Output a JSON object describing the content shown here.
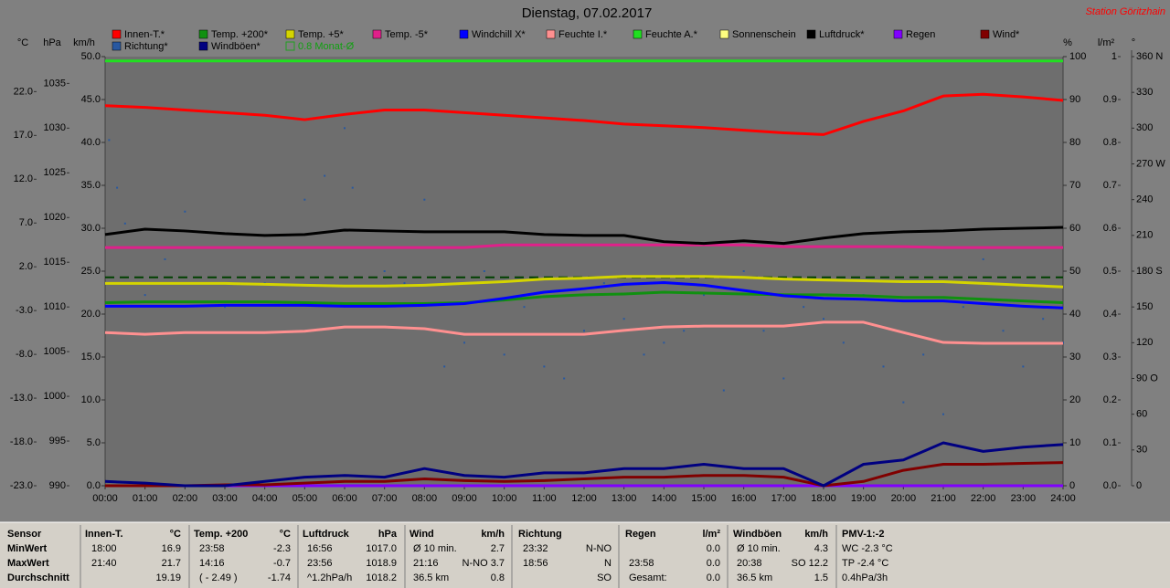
{
  "chart_data": {
    "type": "line",
    "title": "Dienstag, 07.02.2017",
    "station": "Station Göritzhain",
    "x": [
      0,
      1,
      2,
      3,
      4,
      5,
      6,
      7,
      8,
      9,
      10,
      11,
      12,
      13,
      14,
      15,
      16,
      17,
      18,
      19,
      20,
      21,
      22,
      23,
      24
    ],
    "xlim": [
      0,
      24
    ],
    "xticks": [
      {
        "value": 0,
        "label": "00:00"
      },
      {
        "value": 1,
        "label": "01:00"
      },
      {
        "value": 2,
        "label": "02:00"
      },
      {
        "value": 3,
        "label": "03:00"
      },
      {
        "value": 4,
        "label": "04:00"
      },
      {
        "value": 5,
        "label": "05:00"
      },
      {
        "value": 6,
        "label": "06:00"
      },
      {
        "value": 7,
        "label": "07:00"
      },
      {
        "value": 8,
        "label": "08:00"
      },
      {
        "value": 9,
        "label": "09:00"
      },
      {
        "value": 10,
        "label": "10:00"
      },
      {
        "value": 11,
        "label": "11:00"
      },
      {
        "value": 12,
        "label": "12:00"
      },
      {
        "value": 13,
        "label": "13:00"
      },
      {
        "value": 14,
        "label": "14:00"
      },
      {
        "value": 15,
        "label": "15:00"
      },
      {
        "value": 16,
        "label": "16:00"
      },
      {
        "value": 17,
        "label": "17:00"
      },
      {
        "value": 18,
        "label": "18:00"
      },
      {
        "value": 19,
        "label": "19:00"
      },
      {
        "value": 20,
        "label": "20:00"
      },
      {
        "value": 21,
        "label": "21:00"
      },
      {
        "value": 22,
        "label": "22:00"
      },
      {
        "value": 23,
        "label": "23:00"
      },
      {
        "value": 24,
        "label": "24:00"
      }
    ],
    "axes": [
      {
        "label": "°C",
        "lim": [
          -23,
          26
        ],
        "ticks": [
          {
            "value": 22,
            "label": "22.0"
          },
          {
            "value": 17,
            "label": "17.0"
          },
          {
            "value": 12,
            "label": "12.0"
          },
          {
            "value": 7,
            "label": "7.0"
          },
          {
            "value": 2,
            "label": "2.0"
          },
          {
            "value": -3,
            "label": "-3.0"
          },
          {
            "value": -8,
            "label": "-8.0"
          },
          {
            "value": -13,
            "label": "-13.0"
          },
          {
            "value": -18,
            "label": "-18.0"
          },
          {
            "value": -23,
            "label": "-23.0"
          }
        ]
      },
      {
        "label": "hPa",
        "lim": [
          990,
          1038
        ],
        "ticks": [
          1035,
          1030,
          1025,
          1020,
          1015,
          1010,
          1005,
          1000,
          995,
          990
        ]
      },
      {
        "label": "km/h",
        "lim": [
          0,
          50
        ],
        "ticks": [
          {
            "value": 50,
            "label": "50.0"
          },
          {
            "value": 45,
            "label": "45.0"
          },
          {
            "value": 40,
            "label": "40.0"
          },
          {
            "value": 35,
            "label": "35.0"
          },
          {
            "value": 30,
            "label": "30.0"
          },
          {
            "value": 25,
            "label": "25.0"
          },
          {
            "value": 20,
            "label": "20.0"
          },
          {
            "value": 15,
            "label": "15.0"
          },
          {
            "value": 10,
            "label": "10.0"
          },
          {
            "value": 5,
            "label": "5.0"
          },
          {
            "value": 0,
            "label": "0.0"
          }
        ]
      },
      {
        "label": "%",
        "lim": [
          0,
          100
        ],
        "ticks": [
          100,
          90,
          80,
          70,
          60,
          50,
          40,
          30,
          20,
          10,
          0
        ]
      },
      {
        "label": "l/m²",
        "lim": [
          0,
          1
        ],
        "ticks": [
          1,
          0.9,
          0.8,
          0.7,
          0.6,
          0.5,
          0.4,
          0.3,
          0.2,
          0.1,
          {
            "value": 0,
            "label": "0.0"
          }
        ]
      },
      {
        "label": "°",
        "lim": [
          0,
          360
        ],
        "ticks": [
          {
            "value": 360,
            "label": "360 N"
          },
          330,
          300,
          {
            "value": 270,
            "label": "270 W"
          },
          240,
          210,
          {
            "value": 180,
            "label": "180 S"
          },
          150,
          120,
          {
            "value": 90,
            "label": "90 O"
          },
          60,
          30,
          0
        ]
      }
    ],
    "series": [
      {
        "name": "Innen-T.*",
        "color": "#ff0000",
        "axis": "°C",
        "values": [
          20.4,
          20.2,
          19.9,
          19.6,
          19.3,
          18.8,
          19.4,
          19.9,
          19.9,
          19.6,
          19.3,
          19.0,
          18.7,
          18.3,
          18.1,
          17.9,
          17.6,
          17.3,
          17.1,
          18.6,
          19.8,
          21.5,
          21.7,
          21.4,
          21.0
        ]
      },
      {
        "name": "Temp. +200*",
        "color": "#109010",
        "axis": "°C",
        "values": [
          -2.1,
          -2.0,
          -2.0,
          -2.0,
          -2.0,
          -2.1,
          -2.2,
          -2.2,
          -2.2,
          -2.1,
          -1.8,
          -1.4,
          -1.2,
          -1.1,
          -0.9,
          -1.0,
          -1.1,
          -1.2,
          -1.2,
          -1.3,
          -1.5,
          -1.5,
          -1.7,
          -1.9,
          -2.1
        ]
      },
      {
        "name": "Temp. +5*",
        "color": "#d4d400",
        "axis": "°C",
        "values": [
          0.1,
          0.1,
          0.1,
          0.1,
          0.0,
          -0.1,
          -0.2,
          -0.2,
          -0.1,
          0.1,
          0.3,
          0.6,
          0.7,
          0.9,
          0.9,
          0.9,
          0.8,
          0.6,
          0.5,
          0.4,
          0.3,
          0.3,
          0.1,
          -0.1,
          -0.3
        ]
      },
      {
        "name": "Temp. -5*",
        "color": "#e0208a",
        "axis": "°C",
        "values": [
          4.2,
          4.2,
          4.2,
          4.2,
          4.2,
          4.2,
          4.2,
          4.2,
          4.2,
          4.2,
          4.5,
          4.5,
          4.5,
          4.5,
          4.5,
          4.5,
          4.5,
          4.3,
          4.3,
          4.3,
          4.3,
          4.2,
          4.2,
          4.2,
          4.2
        ]
      },
      {
        "name": "Windchill X*",
        "color": "#0000ff",
        "axis": "°C",
        "values": [
          -2.5,
          -2.5,
          -2.5,
          -2.4,
          -2.4,
          -2.4,
          -2.5,
          -2.5,
          -2.4,
          -2.2,
          -1.6,
          -0.9,
          -0.5,
          0.0,
          0.2,
          -0.1,
          -0.7,
          -1.3,
          -1.6,
          -1.7,
          -1.9,
          -1.9,
          -2.2,
          -2.5,
          -2.7
        ]
      },
      {
        "name": "Feuchte I.*",
        "color": "#ff9090",
        "axis": "%",
        "values": [
          35.7,
          35.3,
          35.7,
          35.7,
          35.7,
          36.0,
          37.0,
          37.0,
          36.6,
          35.3,
          35.3,
          35.3,
          35.3,
          36.2,
          37.0,
          37.2,
          37.2,
          37.2,
          38.1,
          38.1,
          35.7,
          33.4,
          33.2,
          33.2,
          33.2
        ]
      },
      {
        "name": "Feuchte A.*",
        "color": "#20e020",
        "axis": "%",
        "values": [
          99,
          99,
          99,
          99,
          99,
          99,
          99,
          99,
          99,
          99,
          99,
          99,
          99,
          99,
          99,
          99,
          99,
          99,
          99,
          99,
          99,
          99,
          99,
          99,
          99
        ]
      },
      {
        "name": "Sonnenschein",
        "color": "#ffff80",
        "axis": "%",
        "values": [
          0,
          0,
          0,
          0,
          0,
          0,
          0,
          0,
          0,
          0,
          0,
          0,
          0,
          0,
          0,
          0,
          0,
          0,
          0,
          0,
          0,
          0,
          0,
          0,
          0
        ]
      },
      {
        "name": "Luftdruck*",
        "color": "#000000",
        "axis": "hPa",
        "values": [
          1018.1,
          1018.7,
          1018.5,
          1018.2,
          1018.0,
          1018.1,
          1018.6,
          1018.5,
          1018.4,
          1018.4,
          1018.4,
          1018.1,
          1018.0,
          1018.0,
          1017.3,
          1017.1,
          1017.4,
          1017.1,
          1017.7,
          1018.2,
          1018.4,
          1018.5,
          1018.7,
          1018.8,
          1018.9
        ]
      },
      {
        "name": "Regen",
        "color": "#8000ff",
        "axis": "l/m²",
        "values": [
          0,
          0,
          0,
          0,
          0,
          0,
          0,
          0,
          0,
          0,
          0,
          0,
          0,
          0,
          0,
          0,
          0,
          0,
          0,
          0,
          0,
          0,
          0,
          0,
          0
        ]
      },
      {
        "name": "Wind*",
        "color": "#800000",
        "axis": "km/h",
        "values": [
          0,
          0,
          0,
          0.1,
          0.1,
          0.3,
          0.5,
          0.5,
          0.8,
          0.6,
          0.5,
          0.6,
          0.8,
          1.0,
          1.0,
          1.2,
          1.2,
          1.0,
          0,
          0.5,
          1.8,
          2.5,
          2.5,
          2.6,
          2.7
        ]
      },
      {
        "name": "Richtung*",
        "color": "#2858a0",
        "axis": "°",
        "marker": "dot",
        "x": [
          0.1,
          0.3,
          0.5,
          1.0,
          1.5,
          2.0,
          2.5,
          3.0,
          3.5,
          4.0,
          4.5,
          5.0,
          5.5,
          6.0,
          6.2,
          7.0,
          7.5,
          8.0,
          8.5,
          9.0,
          9.5,
          10.0,
          10.5,
          11.0,
          11.5,
          12.0,
          12.5,
          13.0,
          13.5,
          14.0,
          14.5,
          15.0,
          15.5,
          16.0,
          16.5,
          17.0,
          17.5,
          18.0,
          18.5,
          19.0,
          19.5,
          20.0,
          20.5,
          21.0,
          21.5,
          22.0,
          22.5,
          23.0,
          23.5,
          24.0
        ],
        "values": [
          290,
          250,
          220,
          160,
          190,
          230,
          170,
          150,
          200,
          170,
          210,
          240,
          260,
          300,
          250,
          180,
          170,
          240,
          100,
          120,
          180,
          110,
          150,
          100,
          90,
          130,
          170,
          140,
          110,
          120,
          130,
          160,
          80,
          180,
          130,
          90,
          150,
          140,
          120,
          160,
          100,
          70,
          110,
          60,
          150,
          190,
          130,
          100,
          140,
          120
        ]
      },
      {
        "name": "Windböen*",
        "color": "#000080",
        "axis": "km/h",
        "values": [
          0.5,
          0.3,
          0,
          0,
          0.5,
          1.0,
          1.2,
          1.0,
          2.0,
          1.2,
          1.0,
          1.5,
          1.5,
          2.0,
          2.0,
          2.5,
          2.0,
          2.0,
          0,
          2.5,
          3.0,
          5.0,
          4.0,
          4.5,
          4.8
        ]
      }
    ],
    "reference": {
      "name": "0.8 Monat-Ø",
      "value": 0.8,
      "axis": "°C",
      "color": "#004000"
    }
  },
  "stats_table": {
    "row_labels": [
      "Sensor",
      "MinWert",
      "MaxWert",
      "Durchschnitt"
    ],
    "groups": [
      {
        "name": "Innen-T.",
        "unit": "°C",
        "rows": [
          {
            "l": "18:00",
            "r": "16.9"
          },
          {
            "l": "21:40",
            "r": "21.7"
          },
          {
            "r": "19.19"
          }
        ]
      },
      {
        "name": "Temp. +200",
        "unit": "°C",
        "rows": [
          {
            "l": "23:58",
            "r": "-2.3"
          },
          {
            "l": "14:16",
            "r": "-0.7"
          },
          {
            "l": "( - 2.49 )",
            "r": "-1.74"
          }
        ]
      },
      {
        "name": "Luftdruck",
        "unit": "hPa",
        "rows": [
          {
            "l": "16:56",
            "r": "1017.0"
          },
          {
            "l": "23:56",
            "r": "1018.9"
          },
          {
            "l": "^1.2hPa/h",
            "r": "1018.2"
          }
        ]
      },
      {
        "name": "Wind",
        "unit": "km/h",
        "rows": [
          {
            "l": "Ø 10 min.",
            "r": "2.7"
          },
          {
            "l": "21:16",
            "r": "N-NO 3.7"
          },
          {
            "l": "36.5 km",
            "r": "0.8"
          }
        ]
      },
      {
        "name": "Richtung",
        "rows": [
          {
            "l": "23:32",
            "r": "N-NO"
          },
          {
            "l": "18:56",
            "r": "N"
          },
          {
            "r": "SO"
          }
        ]
      },
      {
        "name": "Regen",
        "unit": "l/m²",
        "rows": [
          {
            "r": "0.0"
          },
          {
            "l": "23:58",
            "r": "0.0"
          },
          {
            "l": "Gesamt:",
            "r": "0.0"
          }
        ]
      },
      {
        "name": "Windböen",
        "unit": "km/h",
        "rows": [
          {
            "l": "Ø 10 min.",
            "r": "4.3"
          },
          {
            "l": "20:38",
            "r": "SO 12.2"
          },
          {
            "l": "36.5 km",
            "r": "1.5"
          }
        ]
      },
      {
        "name": "PMV-1:-2",
        "rows": [
          {
            "l": "WC -2.3 °C"
          },
          {
            "l": "TP -2.4 °C"
          },
          {
            "l": "0.4hPa/3h"
          }
        ]
      }
    ]
  }
}
